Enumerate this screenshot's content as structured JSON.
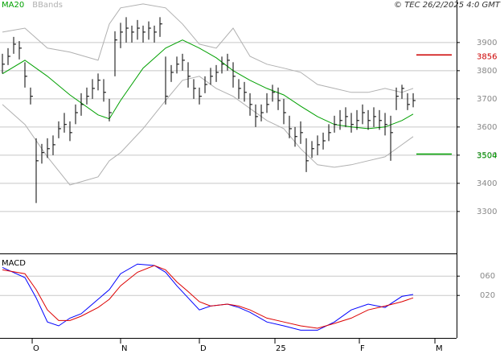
{
  "chart_data": [
    {
      "type": "ohlc",
      "source": "© TEC 26/2/2025 4:0 GMT",
      "xlim": [
        -0.43,
        80.71
      ],
      "xticks": [
        {
          "value": 5.29,
          "label": "O"
        },
        {
          "value": 21,
          "label": "N"
        },
        {
          "value": 35,
          "label": "D"
        },
        {
          "value": 48.43,
          "label": "25"
        },
        {
          "value": 63.43,
          "label": "F"
        },
        {
          "value": 76.86,
          "label": "M"
        }
      ],
      "ylim": [
        3151,
        4051
      ],
      "yticks": [
        3300,
        3400,
        3500,
        3600,
        3700,
        3800,
        3900
      ],
      "grid": true,
      "bars": {
        "color": "#000000",
        "x": [
          0,
          1,
          2,
          3,
          4,
          5,
          6,
          7,
          8,
          9,
          10,
          11,
          12,
          13,
          14,
          15,
          16,
          17,
          18,
          19,
          20,
          21,
          22,
          23,
          24,
          25,
          26,
          27,
          28,
          29,
          30,
          31,
          32,
          33,
          34,
          35,
          36,
          37,
          38,
          39,
          40,
          41,
          42,
          43,
          44,
          45,
          46,
          47,
          48,
          49,
          50,
          51,
          52,
          53,
          54,
          55,
          56,
          57,
          58,
          59,
          60,
          61,
          62,
          63,
          64,
          65,
          66,
          67,
          68,
          69,
          70,
          71,
          72,
          73
        ],
        "high": [
          3860,
          3880,
          3920,
          3905,
          3830,
          3740,
          3560,
          3540,
          3560,
          3570,
          3620,
          3650,
          3620,
          3680,
          3720,
          3740,
          3770,
          3790,
          3770,
          3700,
          3940,
          3970,
          3990,
          3960,
          3980,
          3960,
          3975,
          3960,
          3990,
          3850,
          3820,
          3850,
          3860,
          3830,
          3770,
          3740,
          3780,
          3810,
          3820,
          3850,
          3860,
          3830,
          3770,
          3760,
          3720,
          3680,
          3680,
          3720,
          3750,
          3740,
          3700,
          3640,
          3600,
          3620,
          3560,
          3550,
          3570,
          3580,
          3610,
          3640,
          3660,
          3670,
          3650,
          3660,
          3680,
          3660,
          3670,
          3660,
          3650,
          3640,
          3740,
          3750,
          3720,
          3720
        ],
        "low": [
          3790,
          3820,
          3860,
          3840,
          3740,
          3680,
          3330,
          3470,
          3490,
          3500,
          3560,
          3580,
          3550,
          3610,
          3640,
          3680,
          3700,
          3730,
          3690,
          3620,
          3780,
          3880,
          3900,
          3900,
          3910,
          3900,
          3910,
          3900,
          3920,
          3680,
          3760,
          3790,
          3800,
          3740,
          3700,
          3680,
          3720,
          3750,
          3760,
          3790,
          3800,
          3740,
          3700,
          3690,
          3640,
          3600,
          3620,
          3650,
          3690,
          3660,
          3610,
          3560,
          3530,
          3540,
          3440,
          3490,
          3500,
          3520,
          3550,
          3580,
          3590,
          3600,
          3580,
          3590,
          3610,
          3590,
          3600,
          3590,
          3570,
          3480,
          3660,
          3700,
          3660,
          3670
        ],
        "close": [
          3823,
          3851,
          3894,
          3880,
          3780,
          3709,
          3480,
          3509,
          3523,
          3537,
          3594,
          3609,
          3580,
          3651,
          3680,
          3709,
          3737,
          3766,
          3723,
          3651,
          3909,
          3937,
          3951,
          3937,
          3951,
          3937,
          3951,
          3937,
          3966,
          3709,
          3794,
          3823,
          3837,
          3780,
          3737,
          3709,
          3751,
          3780,
          3794,
          3823,
          3837,
          3780,
          3737,
          3723,
          3680,
          3637,
          3651,
          3680,
          3723,
          3694,
          3651,
          3594,
          3566,
          3580,
          3480,
          3523,
          3537,
          3551,
          3580,
          3609,
          3623,
          3637,
          3609,
          3623,
          3651,
          3623,
          3637,
          3623,
          3609,
          3580,
          3709,
          3737,
          3680,
          3694
        ]
      },
      "series": [
        {
          "name": "MA20",
          "color": "#00a000",
          "x": [
            0,
            4,
            8,
            12,
            17,
            19,
            21,
            25,
            29,
            32,
            35,
            38,
            41,
            44,
            47,
            50,
            53,
            56,
            59,
            62,
            65,
            68,
            71,
            73
          ],
          "values": [
            3789,
            3837,
            3780,
            3714,
            3643,
            3629,
            3694,
            3809,
            3880,
            3909,
            3880,
            3846,
            3800,
            3766,
            3737,
            3714,
            3674,
            3637,
            3609,
            3600,
            3594,
            3600,
            3623,
            3646
          ]
        },
        {
          "name": "BBands",
          "color": "#b0b0b0",
          "x": [
            0,
            4,
            8,
            12,
            17,
            19,
            21,
            25,
            29,
            32,
            35,
            38,
            41,
            44,
            47,
            50,
            53,
            56,
            59,
            62,
            65,
            68,
            71,
            73
          ],
          "upper": [
            3937,
            3951,
            3880,
            3866,
            3837,
            3966,
            4023,
            4037,
            4023,
            3966,
            3894,
            3880,
            3951,
            3851,
            3823,
            3809,
            3794,
            3751,
            3737,
            3723,
            3723,
            3737,
            3723,
            3737
          ],
          "lower": [
            3680,
            3609,
            3494,
            3394,
            3423,
            3480,
            3509,
            3594,
            3694,
            3766,
            3780,
            3737,
            3709,
            3666,
            3623,
            3594,
            3523,
            3466,
            3457,
            3466,
            3480,
            3494,
            3537,
            3566
          ]
        }
      ],
      "annotations": [
        {
          "value": 3856,
          "color": "#cc0000"
        },
        {
          "value": 3504,
          "color": "#00a000"
        }
      ]
    },
    {
      "type": "line",
      "title": "MACD",
      "xlim": [
        -0.43,
        80.71
      ],
      "ylim": [
        -68,
        107
      ],
      "yticks": [
        {
          "value": 60,
          "label": "060"
        },
        {
          "value": 20,
          "label": "020"
        }
      ],
      "x": [
        0,
        4,
        6,
        8,
        10,
        12,
        14,
        17,
        19,
        21,
        24,
        27,
        29,
        31,
        33,
        35,
        37,
        40,
        42,
        44,
        47,
        50,
        53,
        56,
        59,
        62,
        65,
        68,
        71,
        73
      ],
      "series": [
        {
          "color": "#0000ff",
          "values": [
            78,
            57,
            15,
            -35,
            -43,
            -27,
            -18,
            12,
            32,
            65,
            85,
            82,
            68,
            40,
            15,
            -10,
            -2,
            2,
            -5,
            -15,
            -35,
            -43,
            -52,
            -52,
            -35,
            -10,
            2,
            -5,
            18,
            22
          ]
        },
        {
          "color": "#dd0000",
          "values": [
            73,
            65,
            32,
            -10,
            -32,
            -32,
            -23,
            -5,
            12,
            40,
            68,
            82,
            73,
            48,
            28,
            7,
            -2,
            2,
            -2,
            -10,
            -27,
            -35,
            -43,
            -48,
            -38,
            -27,
            -10,
            -2,
            7,
            15
          ]
        }
      ]
    }
  ]
}
